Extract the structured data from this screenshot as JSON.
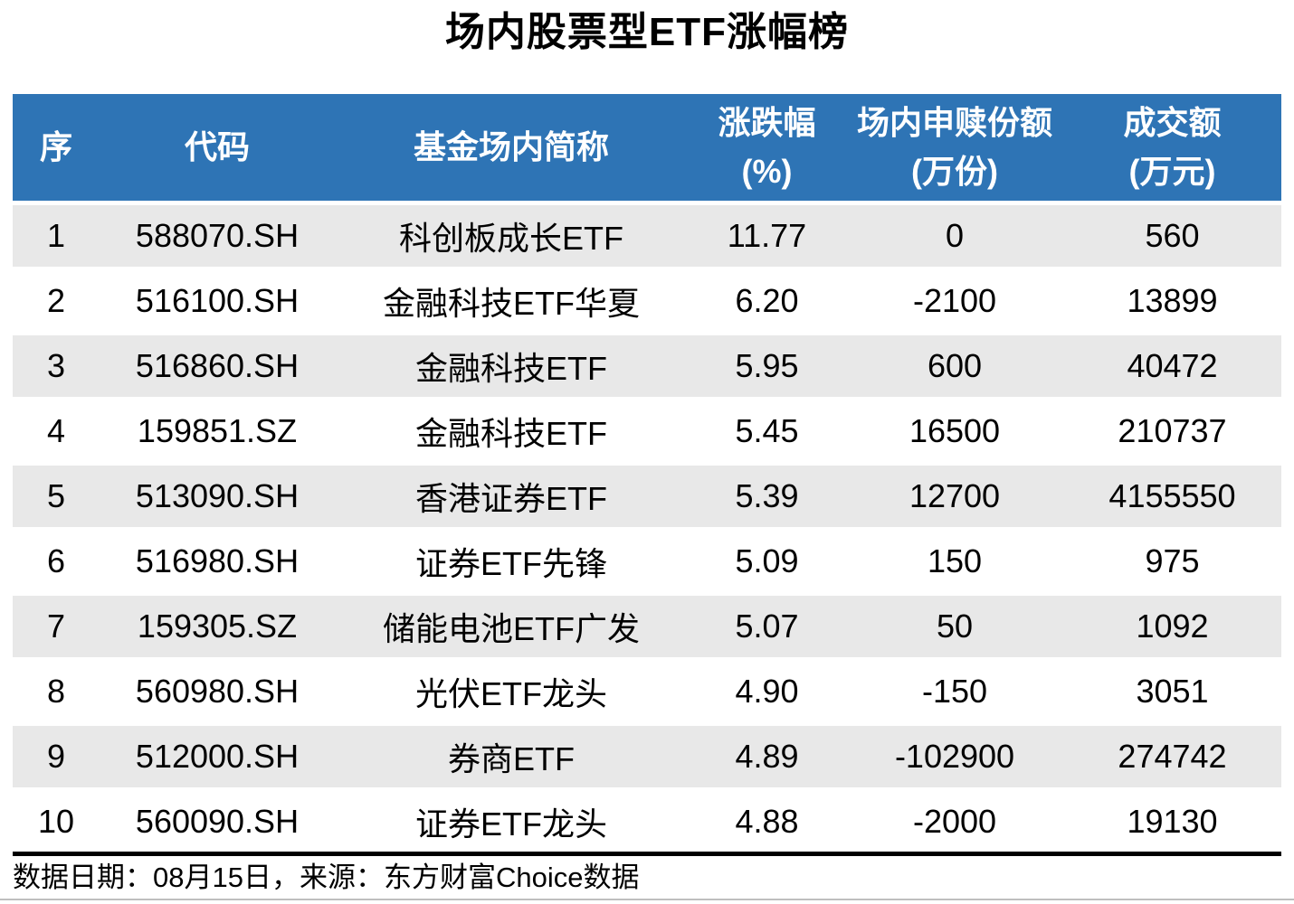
{
  "title": "场内股票型ETF涨幅榜",
  "table": {
    "headers": [
      {
        "line1": "序",
        "line2": ""
      },
      {
        "line1": "代码",
        "line2": ""
      },
      {
        "line1": "基金场内简称",
        "line2": ""
      },
      {
        "line1": "涨跌幅",
        "line2": "(%)"
      },
      {
        "line1": "场内申赎份额",
        "line2": "(万份)"
      },
      {
        "line1": "成交额",
        "line2": "(万元)"
      }
    ],
    "rows": [
      [
        "1",
        "588070.SH",
        "科创板成长ETF",
        "11.77",
        "0",
        "560"
      ],
      [
        "2",
        "516100.SH",
        "金融科技ETF华夏",
        "6.20",
        "-2100",
        "13899"
      ],
      [
        "3",
        "516860.SH",
        "金融科技ETF",
        "5.95",
        "600",
        "40472"
      ],
      [
        "4",
        "159851.SZ",
        "金融科技ETF",
        "5.45",
        "16500",
        "210737"
      ],
      [
        "5",
        "513090.SH",
        "香港证券ETF",
        "5.39",
        "12700",
        "4155550"
      ],
      [
        "6",
        "516980.SH",
        "证券ETF先锋",
        "5.09",
        "150",
        "975"
      ],
      [
        "7",
        "159305.SZ",
        "储能电池ETF广发",
        "5.07",
        "50",
        "1092"
      ],
      [
        "8",
        "560980.SH",
        "光伏ETF龙头",
        "4.90",
        "-150",
        "3051"
      ],
      [
        "9",
        "512000.SH",
        "券商ETF",
        "4.89",
        "-102900",
        "274742"
      ],
      [
        "10",
        "560090.SH",
        "证券ETF龙头",
        "4.88",
        "-2000",
        "19130"
      ]
    ]
  },
  "footer": {
    "text": "数据日期：08月15日，来源：东方财富Choice数据"
  },
  "colors": {
    "header_bg": "#2E74B5",
    "header_text": "#FFFFFF",
    "stripe_bg": "#E8E8E8",
    "divider": "#000000",
    "bottom_rule": "#BFBFBF"
  },
  "chart_data": {
    "type": "table",
    "title": "场内股票型ETF涨幅榜",
    "columns": [
      "序",
      "代码",
      "基金场内简称",
      "涨跌幅(%)",
      "场内申赎份额(万份)",
      "成交额(万元)"
    ],
    "rows": [
      [
        1,
        "588070.SH",
        "科创板成长ETF",
        11.77,
        0,
        560
      ],
      [
        2,
        "516100.SH",
        "金融科技ETF华夏",
        6.2,
        -2100,
        13899
      ],
      [
        3,
        "516860.SH",
        "金融科技ETF",
        5.95,
        600,
        40472
      ],
      [
        4,
        "159851.SZ",
        "金融科技ETF",
        5.45,
        16500,
        210737
      ],
      [
        5,
        "513090.SH",
        "香港证券ETF",
        5.39,
        12700,
        4155550
      ],
      [
        6,
        "516980.SH",
        "证券ETF先锋",
        5.09,
        150,
        975
      ],
      [
        7,
        "159305.SZ",
        "储能电池ETF广发",
        5.07,
        50,
        1092
      ],
      [
        8,
        "560980.SH",
        "光伏ETF龙头",
        4.9,
        -150,
        3051
      ],
      [
        9,
        "512000.SH",
        "券商ETF",
        4.89,
        -102900,
        274742
      ],
      [
        10,
        "560090.SH",
        "证券ETF龙头",
        4.88,
        -2000,
        19130
      ]
    ],
    "source_note": "数据日期：08月15日，来源：东方财富Choice数据",
    "layout": {
      "zebra_striping": true,
      "header_color": "#2E74B5",
      "alignment": "center"
    }
  }
}
